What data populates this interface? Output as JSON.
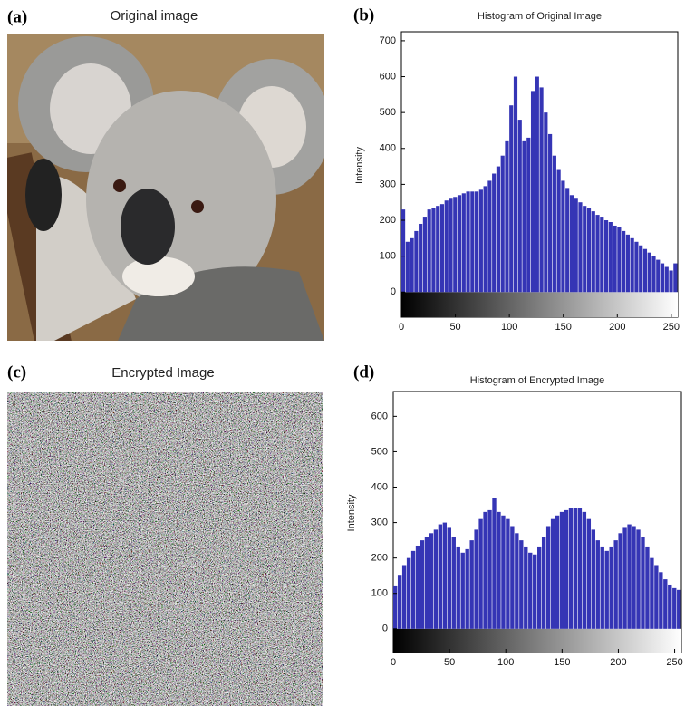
{
  "panels": [
    {
      "label": "(a)",
      "title": "Original image"
    },
    {
      "label": "(c)",
      "title": "Encrypted Image"
    }
  ],
  "chart_data": [
    {
      "type": "histogram",
      "panel_label": "(b)",
      "title": "Histogram of Original Image",
      "y_label": "Intensity",
      "color": "#3535b5",
      "bins": [
        0,
        4,
        8,
        12,
        16,
        20,
        24,
        28,
        32,
        36,
        40,
        44,
        48,
        52,
        56,
        60,
        64,
        68,
        72,
        76,
        80,
        84,
        88,
        92,
        96,
        100,
        104,
        108,
        112,
        116,
        120,
        124,
        128,
        132,
        136,
        140,
        144,
        148,
        152,
        156,
        160,
        164,
        168,
        172,
        176,
        180,
        184,
        188,
        192,
        196,
        200,
        204,
        208,
        212,
        216,
        220,
        224,
        228,
        232,
        236,
        240,
        244,
        248,
        252,
        256
      ],
      "values": [
        230,
        140,
        150,
        170,
        190,
        210,
        230,
        235,
        240,
        245,
        255,
        260,
        265,
        270,
        275,
        280,
        280,
        280,
        285,
        295,
        310,
        330,
        350,
        380,
        420,
        520,
        600,
        480,
        420,
        430,
        560,
        600,
        570,
        500,
        440,
        380,
        340,
        310,
        290,
        270,
        260,
        250,
        240,
        235,
        225,
        215,
        210,
        200,
        195,
        185,
        180,
        170,
        160,
        150,
        140,
        130,
        120,
        110,
        100,
        90,
        80,
        70,
        60,
        80
      ],
      "xlim": [
        0,
        256
      ],
      "xticks": [
        0,
        50,
        100,
        150,
        200,
        250
      ],
      "ylim": [
        -70,
        725
      ],
      "yticks": [
        0,
        100,
        200,
        300,
        400,
        500,
        600,
        700
      ]
    },
    {
      "type": "histogram",
      "panel_label": "(d)",
      "title": "Histogram of Encrypted Image",
      "y_label": "Intensity",
      "color": "#3535b5",
      "bins": [
        0,
        4,
        8,
        12,
        16,
        20,
        24,
        28,
        32,
        36,
        40,
        44,
        48,
        52,
        56,
        60,
        64,
        68,
        72,
        76,
        80,
        84,
        88,
        92,
        96,
        100,
        104,
        108,
        112,
        116,
        120,
        124,
        128,
        132,
        136,
        140,
        144,
        148,
        152,
        156,
        160,
        164,
        168,
        172,
        176,
        180,
        184,
        188,
        192,
        196,
        200,
        204,
        208,
        212,
        216,
        220,
        224,
        228,
        232,
        236,
        240,
        244,
        248,
        252,
        256
      ],
      "values": [
        120,
        150,
        180,
        200,
        220,
        235,
        250,
        260,
        270,
        280,
        295,
        300,
        285,
        260,
        230,
        215,
        225,
        250,
        280,
        310,
        330,
        335,
        370,
        330,
        320,
        310,
        290,
        270,
        250,
        230,
        215,
        210,
        230,
        260,
        290,
        310,
        320,
        330,
        335,
        340,
        340,
        340,
        330,
        310,
        280,
        250,
        230,
        220,
        230,
        250,
        270,
        285,
        295,
        290,
        280,
        260,
        230,
        200,
        180,
        160,
        140,
        125,
        115,
        110
      ],
      "xlim": [
        0,
        256
      ],
      "xticks": [
        0,
        50,
        100,
        150,
        200,
        250
      ],
      "ylim": [
        -67,
        670
      ],
      "yticks": [
        0,
        100,
        200,
        300,
        400,
        500,
        600
      ]
    }
  ]
}
